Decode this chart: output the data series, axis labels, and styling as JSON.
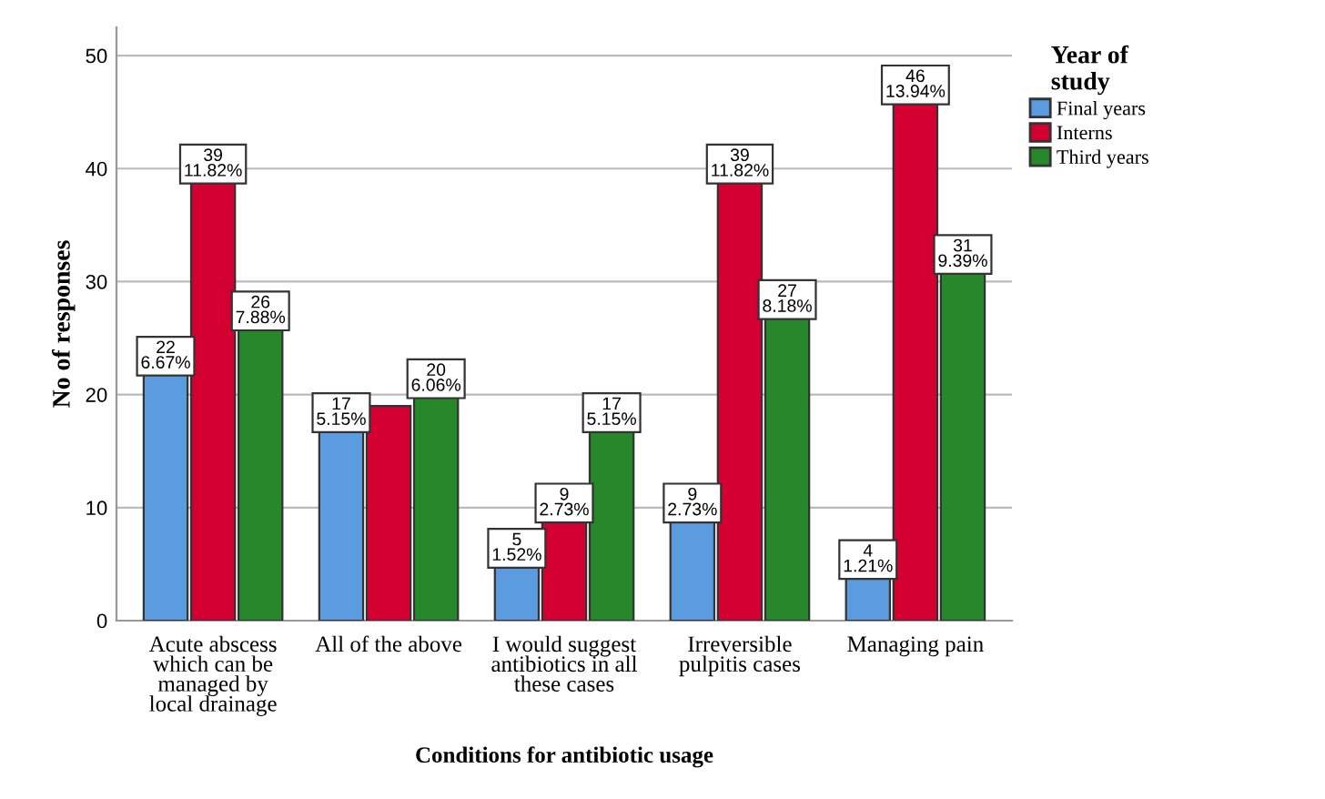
{
  "chart_data": {
    "type": "bar",
    "xlabel": "Conditions for antibiotic usage",
    "ylabel": "No of responses",
    "legend_title": "Year of\nstudy",
    "categories": [
      "Acute abscess\nwhich can be\nmanaged by\nlocal drainage",
      "All of the above",
      "I would suggest\nantibiotics in all\nthese cases",
      "Irreversible\npulpitis cases",
      "Managing pain"
    ],
    "series": [
      {
        "name": "Final years",
        "color": "#5b9be0",
        "values": [
          22,
          17,
          5,
          9,
          4
        ],
        "value_labels": [
          "22\n6.67%",
          "17\n5.15%",
          "5\n1.52%",
          "9\n2.73%",
          "4\n1.21%"
        ]
      },
      {
        "name": "Interns",
        "color": "#d40032",
        "values": [
          39,
          19,
          9,
          39,
          46
        ],
        "value_labels": [
          "39\n11.82%",
          null,
          "9\n2.73%",
          "39\n11.82%",
          "46\n13.94%"
        ]
      },
      {
        "name": "Third years",
        "color": "#26882a",
        "values": [
          26,
          20,
          17,
          27,
          31
        ],
        "value_labels": [
          "26\n7.88%",
          "20\n6.06%",
          "17\n5.15%",
          "27\n8.18%",
          "31\n9.39%"
        ]
      }
    ],
    "ylim": [
      0,
      52.5
    ],
    "yticks": [
      0,
      10,
      20,
      30,
      40,
      50
    ],
    "grid": "y",
    "legend": "top right"
  }
}
